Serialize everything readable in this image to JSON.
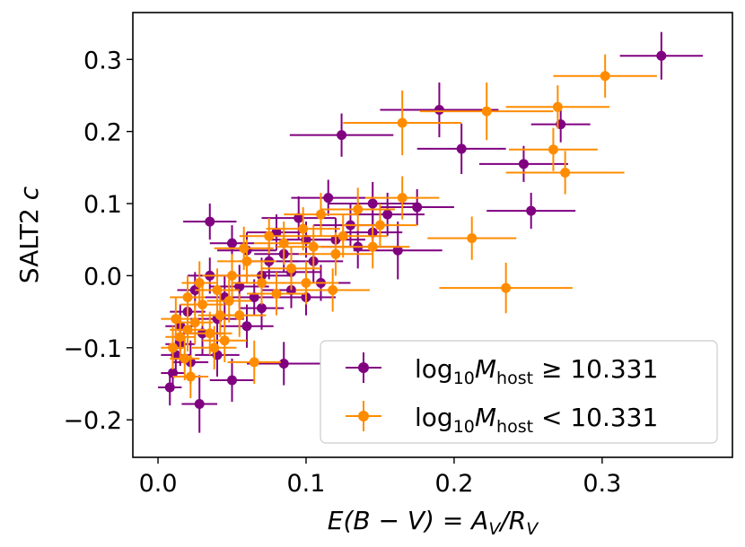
{
  "chart_data": {
    "type": "scatter",
    "xlabel": {
      "prefix": "E(B − V) = A",
      "sub1": "V",
      "mid": "/R",
      "sub2": "V"
    },
    "ylabel": {
      "text": "SALT2 ",
      "italic": "c"
    },
    "xlim": [
      -0.017,
      0.388
    ],
    "ylim": [
      -0.252,
      0.365
    ],
    "xticks": [
      0.0,
      0.1,
      0.2,
      0.3
    ],
    "xtick_labels": [
      "0.0",
      "0.1",
      "0.2",
      "0.3"
    ],
    "yticks": [
      -0.2,
      -0.1,
      0.0,
      0.1,
      0.2,
      0.3
    ],
    "ytick_labels": [
      "−0.2",
      "−0.1",
      "0.0",
      "0.1",
      "0.2",
      "0.3"
    ],
    "legend_position": "lower-right",
    "series": [
      {
        "name": "high-mass",
        "legend": {
          "prefix": "log",
          "sub": "10",
          "M": "M",
          "Msub": "host",
          "rel": " ≥ ",
          "value": "10.331"
        },
        "color": "#800080",
        "points": [
          {
            "x": 0.34,
            "y": 0.305,
            "xerr": 0.028,
            "yerr": 0.033
          },
          {
            "x": 0.19,
            "y": 0.23,
            "xerr": 0.04,
            "yerr": 0.038
          },
          {
            "x": 0.124,
            "y": 0.195,
            "xerr": 0.035,
            "yerr": 0.03
          },
          {
            "x": 0.272,
            "y": 0.21,
            "xerr": 0.02,
            "yerr": 0.025
          },
          {
            "x": 0.205,
            "y": 0.176,
            "xerr": 0.03,
            "yerr": 0.035
          },
          {
            "x": 0.247,
            "y": 0.155,
            "xerr": 0.03,
            "yerr": 0.025
          },
          {
            "x": 0.252,
            "y": 0.09,
            "xerr": 0.03,
            "yerr": 0.025
          },
          {
            "x": 0.162,
            "y": 0.035,
            "xerr": 0.03,
            "yerr": 0.04
          },
          {
            "x": 0.145,
            "y": 0.1,
            "xerr": 0.03,
            "yerr": 0.03
          },
          {
            "x": 0.175,
            "y": 0.095,
            "xerr": 0.025,
            "yerr": 0.025
          },
          {
            "x": 0.155,
            "y": 0.085,
            "xerr": 0.025,
            "yerr": 0.03
          },
          {
            "x": 0.145,
            "y": 0.06,
            "xerr": 0.02,
            "yerr": 0.025
          },
          {
            "x": 0.115,
            "y": 0.108,
            "xerr": 0.025,
            "yerr": 0.025
          },
          {
            "x": 0.095,
            "y": 0.08,
            "xerr": 0.025,
            "yerr": 0.03
          },
          {
            "x": 0.035,
            "y": 0.075,
            "xerr": 0.018,
            "yerr": 0.025
          },
          {
            "x": 0.135,
            "y": 0.04,
            "xerr": 0.025,
            "yerr": 0.03
          },
          {
            "x": 0.1,
            "y": 0.05,
            "xerr": 0.025,
            "yerr": 0.025
          },
          {
            "x": 0.12,
            "y": 0.05,
            "xerr": 0.02,
            "yerr": 0.03
          },
          {
            "x": 0.085,
            "y": 0.03,
            "xerr": 0.02,
            "yerr": 0.025
          },
          {
            "x": 0.105,
            "y": 0.02,
            "xerr": 0.02,
            "yerr": 0.03
          },
          {
            "x": 0.09,
            "y": 0.005,
            "xerr": 0.02,
            "yerr": 0.025
          },
          {
            "x": 0.11,
            "y": -0.01,
            "xerr": 0.02,
            "yerr": 0.025
          },
          {
            "x": 0.06,
            "y": 0.035,
            "xerr": 0.02,
            "yerr": 0.025
          },
          {
            "x": 0.07,
            "y": 0.0,
            "xerr": 0.02,
            "yerr": 0.025
          },
          {
            "x": 0.055,
            "y": -0.015,
            "xerr": 0.02,
            "yerr": 0.03
          },
          {
            "x": 0.07,
            "y": -0.045,
            "xerr": 0.015,
            "yerr": 0.03
          },
          {
            "x": 0.09,
            "y": -0.02,
            "xerr": 0.02,
            "yerr": 0.025
          },
          {
            "x": 0.045,
            "y": -0.03,
            "xerr": 0.015,
            "yerr": 0.03
          },
          {
            "x": 0.04,
            "y": -0.06,
            "xerr": 0.018,
            "yerr": 0.03
          },
          {
            "x": 0.03,
            "y": -0.08,
            "xerr": 0.015,
            "yerr": 0.03
          },
          {
            "x": 0.02,
            "y": -0.05,
            "xerr": 0.012,
            "yerr": 0.03
          },
          {
            "x": 0.015,
            "y": -0.095,
            "xerr": 0.01,
            "yerr": 0.03
          },
          {
            "x": 0.01,
            "y": -0.135,
            "xerr": 0.008,
            "yerr": 0.025
          },
          {
            "x": 0.008,
            "y": -0.155,
            "xerr": 0.008,
            "yerr": 0.025
          },
          {
            "x": 0.012,
            "y": -0.11,
            "xerr": 0.01,
            "yerr": 0.03
          },
          {
            "x": 0.028,
            "y": -0.178,
            "xerr": 0.012,
            "yerr": 0.04
          },
          {
            "x": 0.04,
            "y": -0.11,
            "xerr": 0.015,
            "yerr": 0.03
          },
          {
            "x": 0.05,
            "y": -0.145,
            "xerr": 0.015,
            "yerr": 0.03
          },
          {
            "x": 0.085,
            "y": -0.122,
            "xerr": 0.025,
            "yerr": 0.03
          },
          {
            "x": 0.025,
            "y": -0.02,
            "xerr": 0.012,
            "yerr": 0.025
          },
          {
            "x": 0.035,
            "y": 0.0,
            "xerr": 0.015,
            "yerr": 0.025
          },
          {
            "x": 0.05,
            "y": 0.045,
            "xerr": 0.015,
            "yerr": 0.025
          },
          {
            "x": 0.08,
            "y": 0.06,
            "xerr": 0.02,
            "yerr": 0.025
          },
          {
            "x": 0.075,
            "y": 0.02,
            "xerr": 0.02,
            "yerr": 0.025
          },
          {
            "x": 0.1,
            "y": -0.03,
            "xerr": 0.02,
            "yerr": 0.025
          },
          {
            "x": 0.06,
            "y": -0.07,
            "xerr": 0.018,
            "yerr": 0.03
          },
          {
            "x": 0.015,
            "y": -0.07,
            "xerr": 0.01,
            "yerr": 0.03
          },
          {
            "x": 0.022,
            "y": -0.12,
            "xerr": 0.012,
            "yerr": 0.03
          },
          {
            "x": 0.13,
            "y": 0.07,
            "xerr": 0.025,
            "yerr": 0.03
          },
          {
            "x": 0.065,
            "y": -0.03,
            "xerr": 0.02,
            "yerr": 0.025
          }
        ]
      },
      {
        "name": "low-mass",
        "legend": {
          "prefix": "log",
          "sub": "10",
          "M": "M",
          "Msub": "host",
          "rel": " < ",
          "value": "10.331"
        },
        "color": "#ff8c00",
        "points": [
          {
            "x": 0.302,
            "y": 0.277,
            "xerr": 0.035,
            "yerr": 0.03
          },
          {
            "x": 0.222,
            "y": 0.228,
            "xerr": 0.045,
            "yerr": 0.04
          },
          {
            "x": 0.165,
            "y": 0.212,
            "xerr": 0.04,
            "yerr": 0.045
          },
          {
            "x": 0.27,
            "y": 0.234,
            "xerr": 0.035,
            "yerr": 0.03
          },
          {
            "x": 0.267,
            "y": 0.175,
            "xerr": 0.03,
            "yerr": 0.03
          },
          {
            "x": 0.275,
            "y": 0.143,
            "xerr": 0.04,
            "yerr": 0.03
          },
          {
            "x": 0.212,
            "y": 0.052,
            "xerr": 0.03,
            "yerr": 0.03
          },
          {
            "x": 0.235,
            "y": -0.017,
            "xerr": 0.045,
            "yerr": 0.035
          },
          {
            "x": 0.165,
            "y": 0.108,
            "xerr": 0.025,
            "yerr": 0.03
          },
          {
            "x": 0.135,
            "y": 0.092,
            "xerr": 0.025,
            "yerr": 0.03
          },
          {
            "x": 0.11,
            "y": 0.085,
            "xerr": 0.025,
            "yerr": 0.03
          },
          {
            "x": 0.098,
            "y": 0.065,
            "xerr": 0.025,
            "yerr": 0.03
          },
          {
            "x": 0.125,
            "y": 0.055,
            "xerr": 0.03,
            "yerr": 0.03
          },
          {
            "x": 0.145,
            "y": 0.04,
            "xerr": 0.025,
            "yerr": 0.03
          },
          {
            "x": 0.12,
            "y": 0.03,
            "xerr": 0.025,
            "yerr": 0.03
          },
          {
            "x": 0.085,
            "y": 0.045,
            "xerr": 0.02,
            "yerr": 0.03
          },
          {
            "x": 0.075,
            "y": 0.055,
            "xerr": 0.02,
            "yerr": 0.025
          },
          {
            "x": 0.06,
            "y": 0.02,
            "xerr": 0.02,
            "yerr": 0.03
          },
          {
            "x": 0.05,
            "y": 0.0,
            "xerr": 0.02,
            "yerr": 0.03
          },
          {
            "x": 0.07,
            "y": -0.01,
            "xerr": 0.02,
            "yerr": 0.03
          },
          {
            "x": 0.08,
            "y": -0.025,
            "xerr": 0.02,
            "yerr": 0.03
          },
          {
            "x": 0.04,
            "y": -0.02,
            "xerr": 0.015,
            "yerr": 0.03
          },
          {
            "x": 0.03,
            "y": -0.04,
            "xerr": 0.015,
            "yerr": 0.03
          },
          {
            "x": 0.02,
            "y": -0.03,
            "xerr": 0.012,
            "yerr": 0.03
          },
          {
            "x": 0.025,
            "y": -0.065,
            "xerr": 0.012,
            "yerr": 0.03
          },
          {
            "x": 0.035,
            "y": -0.08,
            "xerr": 0.015,
            "yerr": 0.03
          },
          {
            "x": 0.015,
            "y": -0.085,
            "xerr": 0.01,
            "yerr": 0.03
          },
          {
            "x": 0.01,
            "y": -0.1,
            "xerr": 0.008,
            "yerr": 0.03
          },
          {
            "x": 0.018,
            "y": -0.115,
            "xerr": 0.01,
            "yerr": 0.03
          },
          {
            "x": 0.022,
            "y": -0.14,
            "xerr": 0.012,
            "yerr": 0.03
          },
          {
            "x": 0.045,
            "y": -0.09,
            "xerr": 0.015,
            "yerr": 0.03
          },
          {
            "x": 0.055,
            "y": -0.055,
            "xerr": 0.018,
            "yerr": 0.03
          },
          {
            "x": 0.065,
            "y": -0.12,
            "xerr": 0.018,
            "yerr": 0.03
          },
          {
            "x": 0.048,
            "y": -0.035,
            "xerr": 0.015,
            "yerr": 0.03
          },
          {
            "x": 0.09,
            "y": 0.01,
            "xerr": 0.02,
            "yerr": 0.03
          },
          {
            "x": 0.105,
            "y": 0.04,
            "xerr": 0.025,
            "yerr": 0.03
          },
          {
            "x": 0.058,
            "y": 0.038,
            "xerr": 0.02,
            "yerr": 0.03
          },
          {
            "x": 0.012,
            "y": -0.06,
            "xerr": 0.01,
            "yerr": 0.03
          },
          {
            "x": 0.028,
            "y": -0.01,
            "xerr": 0.012,
            "yerr": 0.03
          },
          {
            "x": 0.038,
            "y": -0.1,
            "xerr": 0.015,
            "yerr": 0.03
          },
          {
            "x": 0.1,
            "y": -0.01,
            "xerr": 0.022,
            "yerr": 0.03
          },
          {
            "x": 0.118,
            "y": -0.02,
            "xerr": 0.025,
            "yerr": 0.03
          },
          {
            "x": 0.15,
            "y": 0.07,
            "xerr": 0.025,
            "yerr": 0.03
          },
          {
            "x": 0.042,
            "y": -0.055,
            "xerr": 0.015,
            "yerr": 0.03
          },
          {
            "x": 0.02,
            "y": -0.075,
            "xerr": 0.012,
            "yerr": 0.03
          }
        ]
      }
    ]
  }
}
